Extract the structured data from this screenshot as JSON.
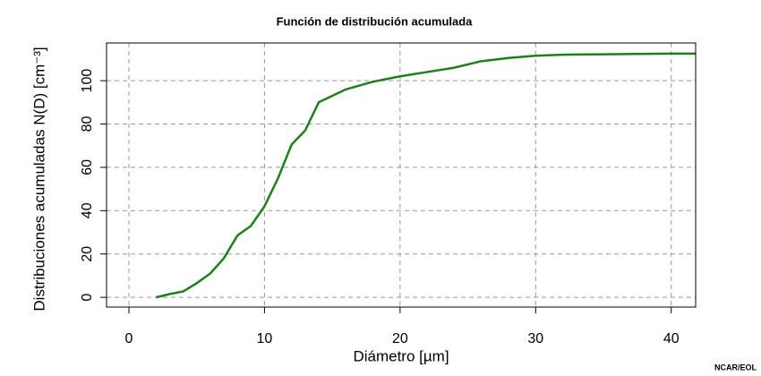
{
  "chart_data": {
    "type": "line",
    "title": "Función de distribución acumulada",
    "xlabel": "Diámetro [µm]",
    "ylabel": "Distribuciones acumuladas N(D) [cm⁻³]",
    "credit": "NCAR/EOL",
    "x": [
      2,
      3,
      4,
      5,
      6,
      7,
      8,
      9,
      10,
      11,
      12,
      13,
      14,
      16,
      18,
      20,
      22,
      24,
      26,
      28,
      30,
      32,
      35,
      40,
      41.8
    ],
    "series": [
      {
        "name": "N(D)",
        "color": "#1f7f1f",
        "values": [
          0,
          1.5,
          2.7,
          6.5,
          11,
          18,
          28.5,
          33,
          42,
          55,
          70.5,
          77,
          90,
          96,
          99.5,
          102,
          104,
          106,
          109,
          110.5,
          111.5,
          112,
          112.2,
          112.5,
          112.5
        ]
      }
    ],
    "xlim": [
      -1.65,
      41.8
    ],
    "ylim": [
      -4.5,
      117.4
    ],
    "xticks": [
      0,
      10,
      20,
      30,
      40
    ],
    "yticks": [
      0,
      20,
      40,
      60,
      80,
      100
    ],
    "grid": true
  }
}
